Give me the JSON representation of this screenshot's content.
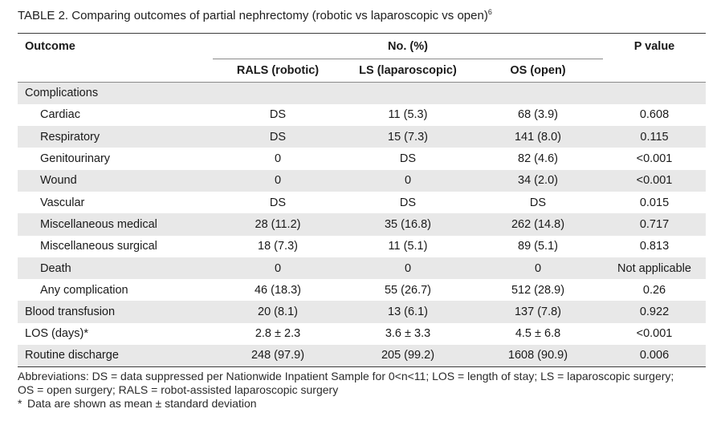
{
  "caption": {
    "text": "TABLE 2.  Comparing outcomes of partial nephrectomy (robotic vs laparoscopic vs open)",
    "ref": "6"
  },
  "table": {
    "headers": {
      "outcome": "Outcome",
      "group": "No. (%)",
      "pvalue": "P value",
      "rals": "RALS (robotic)",
      "ls": "LS (laparoscopic)",
      "os": "OS (open)"
    },
    "rows": [
      {
        "label": "Complications",
        "sub": false,
        "shade": true,
        "rals": "",
        "ls": "",
        "os": "",
        "p": ""
      },
      {
        "label": "Cardiac",
        "sub": true,
        "shade": false,
        "rals": "DS",
        "ls": "11 (5.3)",
        "os": "68 (3.9)",
        "p": "0.608"
      },
      {
        "label": "Respiratory",
        "sub": true,
        "shade": true,
        "rals": "DS",
        "ls": "15 (7.3)",
        "os": "141 (8.0)",
        "p": "0.115"
      },
      {
        "label": "Genitourinary",
        "sub": true,
        "shade": false,
        "rals": "0",
        "ls": "DS",
        "os": "82 (4.6)",
        "p": "<0.001"
      },
      {
        "label": "Wound",
        "sub": true,
        "shade": true,
        "rals": "0",
        "ls": "0",
        "os": "34 (2.0)",
        "p": "<0.001"
      },
      {
        "label": "Vascular",
        "sub": true,
        "shade": false,
        "rals": "DS",
        "ls": "DS",
        "os": "DS",
        "p": "0.015"
      },
      {
        "label": "Miscellaneous medical",
        "sub": true,
        "shade": true,
        "rals": "28 (11.2)",
        "ls": "35 (16.8)",
        "os": "262 (14.8)",
        "p": "0.717"
      },
      {
        "label": "Miscellaneous surgical",
        "sub": true,
        "shade": false,
        "rals": "18 (7.3)",
        "ls": "11 (5.1)",
        "os": "89 (5.1)",
        "p": "0.813"
      },
      {
        "label": "Death",
        "sub": true,
        "shade": true,
        "rals": "0",
        "ls": "0",
        "os": "0",
        "p": "Not applicable"
      },
      {
        "label": "Any complication",
        "sub": true,
        "shade": false,
        "rals": "46 (18.3)",
        "ls": "55 (26.7)",
        "os": "512 (28.9)",
        "p": "0.26"
      },
      {
        "label": "Blood transfusion",
        "sub": false,
        "shade": true,
        "rals": "20 (8.1)",
        "ls": "13 (6.1)",
        "os": "137 (7.8)",
        "p": "0.922"
      },
      {
        "label": "LOS (days)*",
        "sub": false,
        "shade": false,
        "rals": "2.8 ± 2.3",
        "ls": "3.6 ± 3.3",
        "os": "4.5 ± 6.8",
        "p": "<0.001"
      },
      {
        "label": "Routine discharge",
        "sub": false,
        "shade": true,
        "rals": "248 (97.9)",
        "ls": "205 (99.2)",
        "os": "1608 (90.9)",
        "p": "0.006"
      }
    ]
  },
  "notes": {
    "abbreviations_line1": "Abbreviations: DS = data suppressed per Nationwide Inpatient Sample for 0<n<11; LOS = length of stay; LS = laparoscopic surgery;",
    "abbreviations_line2": "OS = open surgery; RALS = robot-assisted laparoscopic surgery",
    "footnote_mark": "*",
    "footnote_text": "Data are shown as mean ± standard deviation"
  }
}
